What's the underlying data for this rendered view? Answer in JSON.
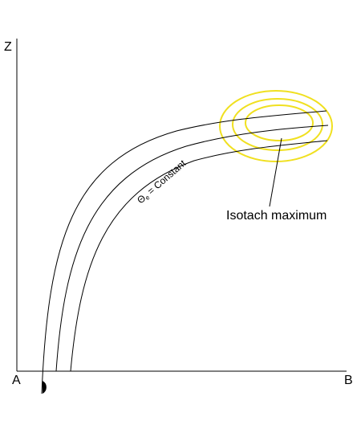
{
  "labels": {
    "z_axis": "Z",
    "a_point": "A",
    "b_point": "B",
    "isotach": "Isotach maximum",
    "theta_symbol": "Θ",
    "theta_subscript": "e",
    "theta_rest": " = Constant"
  },
  "colors": {
    "isotach_rings": "#f0e020",
    "lines": "#000000"
  },
  "isentrope_count": 3,
  "isotach_ring_count": 3
}
